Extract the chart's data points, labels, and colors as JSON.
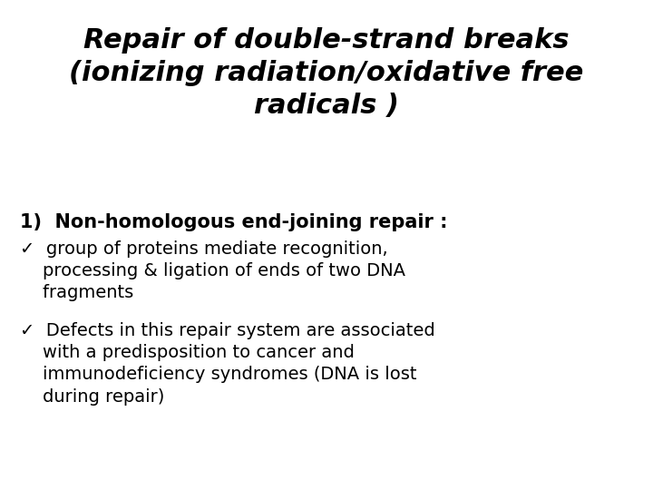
{
  "background_color": "#ffffff",
  "title_line1": "Repair of double-strand breaks",
  "title_line2": "(ionizing radiation/oxidative free",
  "title_line3": "radicals )",
  "title_fontsize": 22,
  "body_fontsize": 14,
  "numbered_item": "1)  Non-homologous end-joining repair :",
  "numbered_fontsize": 15,
  "bullet1_line1": "✓  group of proteins mediate recognition,",
  "bullet1_line2": "    processing & ligation of ends of two DNA",
  "bullet1_line3": "    fragments",
  "bullet2_line1": "✓  Defects in this repair system are associated",
  "bullet2_line2": "    with a predisposition to cancer and",
  "bullet2_line3": "    immunodeficiency syndromes (DNA is lost",
  "bullet2_line4": "    during repair)",
  "text_color": "#000000"
}
